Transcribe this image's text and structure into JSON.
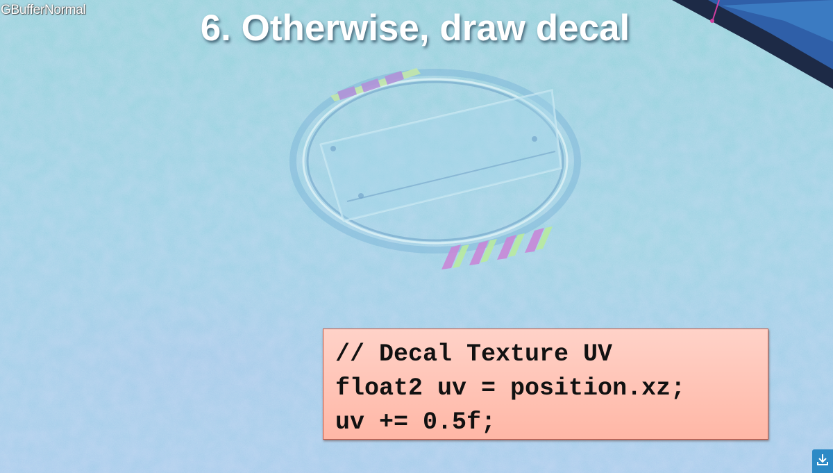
{
  "viewport": {
    "buffer_label": "GBufferNormal"
  },
  "slide": {
    "title": "6. Otherwise, draw decal"
  },
  "code_box": {
    "lines": [
      "// Decal Texture UV",
      "float2 uv = position.xz;",
      "uv += 0.5f;"
    ]
  },
  "controls": {
    "download_icon": "download-icon"
  },
  "colors": {
    "normal_base": "#98cfe2",
    "code_box_bg": "#ffc2b4",
    "code_box_border": "#c55a45",
    "download_button": "#2d8ac6"
  }
}
